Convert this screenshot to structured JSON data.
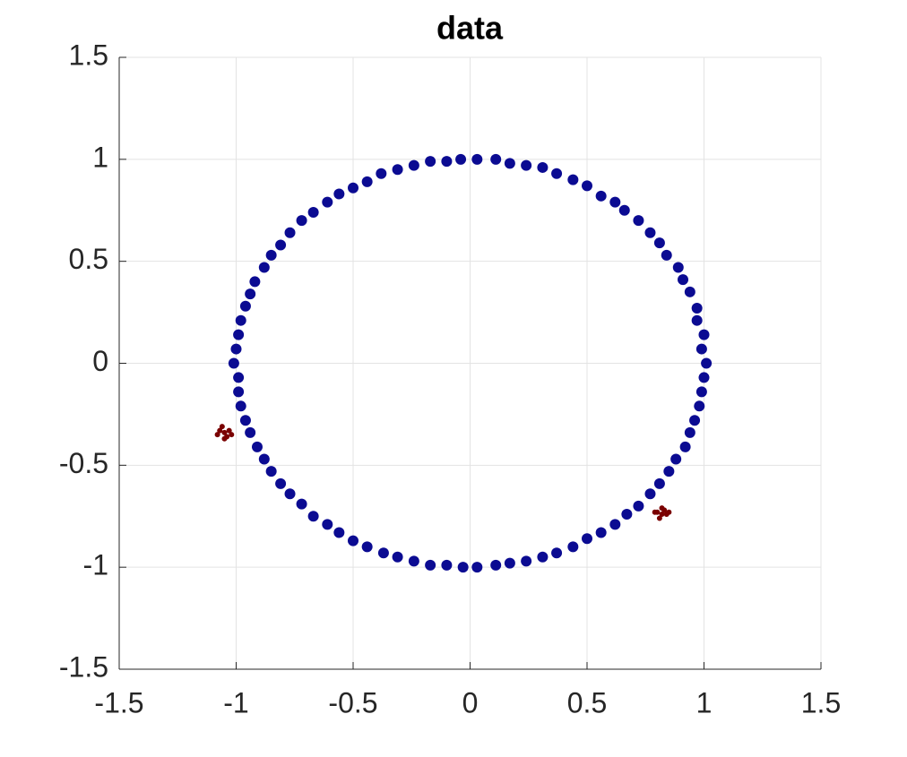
{
  "chart_data": {
    "type": "scatter",
    "title": "data",
    "xlim": [
      -1.5,
      1.5
    ],
    "ylim": [
      -1.5,
      1.5
    ],
    "xticks": [
      -1.5,
      -1,
      -0.5,
      0,
      0.5,
      1,
      1.5
    ],
    "yticks": [
      -1.5,
      -1,
      -0.5,
      0,
      0.5,
      1,
      1.5
    ],
    "grid": true,
    "series": [
      {
        "color": "#0b0b92",
        "x": [
          1.01,
          0.99,
          1.0,
          0.97,
          0.97,
          0.94,
          0.91,
          0.89,
          0.84,
          0.81,
          0.77,
          0.72,
          0.66,
          0.62,
          0.56,
          0.5,
          0.44,
          0.37,
          0.31,
          0.24,
          0.17,
          0.11,
          0.03,
          -0.04,
          -0.1,
          -0.17,
          -0.24,
          -0.31,
          -0.38,
          -0.44,
          -0.5,
          -0.56,
          -0.61,
          -0.67,
          -0.72,
          -0.77,
          -0.81,
          -0.85,
          -0.88,
          -0.92,
          -0.94,
          -0.96,
          -0.98,
          -0.99,
          -1.0,
          -1.01,
          -0.99,
          -0.99,
          -0.98,
          -0.96,
          -0.94,
          -0.91,
          -0.88,
          -0.85,
          -0.81,
          -0.77,
          -0.72,
          -0.67,
          -0.61,
          -0.56,
          -0.5,
          -0.44,
          -0.37,
          -0.31,
          -0.24,
          -0.17,
          -0.1,
          -0.03,
          0.03,
          0.11,
          0.17,
          0.24,
          0.31,
          0.37,
          0.44,
          0.5,
          0.56,
          0.62,
          0.67,
          0.72,
          0.77,
          0.81,
          0.85,
          0.88,
          0.92,
          0.94,
          0.96,
          0.98,
          0.99,
          1.0
        ],
        "y": [
          0.0,
          0.07,
          0.14,
          0.21,
          0.27,
          0.35,
          0.41,
          0.47,
          0.53,
          0.59,
          0.64,
          0.7,
          0.75,
          0.79,
          0.82,
          0.87,
          0.9,
          0.93,
          0.96,
          0.97,
          0.98,
          1.0,
          1.0,
          1.0,
          0.99,
          0.99,
          0.97,
          0.95,
          0.93,
          0.89,
          0.86,
          0.83,
          0.79,
          0.74,
          0.7,
          0.64,
          0.58,
          0.53,
          0.47,
          0.4,
          0.34,
          0.28,
          0.21,
          0.14,
          0.07,
          0.0,
          -0.07,
          -0.14,
          -0.21,
          -0.28,
          -0.34,
          -0.41,
          -0.47,
          -0.53,
          -0.59,
          -0.64,
          -0.69,
          -0.75,
          -0.79,
          -0.83,
          -0.87,
          -0.9,
          -0.93,
          -0.95,
          -0.97,
          -0.99,
          -0.99,
          -1.0,
          -1.0,
          -0.99,
          -0.98,
          -0.97,
          -0.95,
          -0.93,
          -0.9,
          -0.86,
          -0.83,
          -0.79,
          -0.74,
          -0.7,
          -0.64,
          -0.59,
          -0.53,
          -0.47,
          -0.41,
          -0.34,
          -0.28,
          -0.21,
          -0.14,
          -0.07
        ]
      },
      {
        "color": "#7a0000",
        "x": [
          -1.05,
          -1.07,
          -1.04,
          -1.06,
          -1.03,
          -1.08,
          -1.05,
          -1.02,
          0.82,
          0.8,
          0.83,
          0.81,
          0.84,
          0.79,
          0.82,
          0.85
        ],
        "y": [
          -0.34,
          -0.33,
          -0.36,
          -0.31,
          -0.33,
          -0.35,
          -0.37,
          -0.35,
          -0.74,
          -0.73,
          -0.72,
          -0.76,
          -0.74,
          -0.73,
          -0.71,
          -0.73
        ]
      }
    ]
  }
}
